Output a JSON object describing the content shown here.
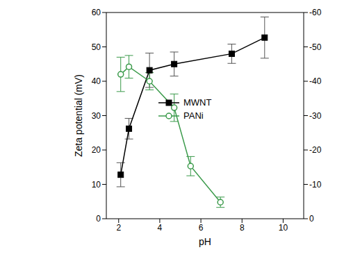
{
  "chart_data": {
    "type": "line",
    "x_label": "pH",
    "y_label": "Zeta potential (mV)",
    "xlim": [
      1.4,
      11
    ],
    "xticks": [
      2,
      4,
      6,
      8,
      10
    ],
    "ylim": [
      0,
      60
    ],
    "yticks": [
      0,
      10,
      20,
      30,
      40,
      50,
      60
    ],
    "y2lim": [
      0,
      -60
    ],
    "y2ticks": [
      0,
      -10,
      -20,
      -30,
      -40,
      -50,
      -60
    ],
    "legend": "center",
    "series": [
      {
        "name": "MWNT",
        "color": "#000000",
        "marker": "square",
        "x": [
          2.1,
          2.5,
          3.5,
          4.7,
          7.5,
          9.1
        ],
        "values": [
          12.8,
          26.2,
          43.2,
          45,
          48,
          52.7
        ],
        "error": [
          3.5,
          3,
          5,
          3.5,
          2.8,
          6
        ]
      },
      {
        "name": "PANi",
        "color": "#3a9a4a",
        "marker": "open_circle",
        "axis": "y2",
        "x": [
          2.1,
          2.5,
          3.5,
          4.7,
          5.5,
          6.95
        ],
        "values": [
          -42,
          -44.2,
          -40,
          -32.3,
          -15.3,
          -4.8
        ],
        "error": [
          5,
          3.3,
          2.5,
          4,
          2.8,
          1.5
        ]
      }
    ]
  }
}
